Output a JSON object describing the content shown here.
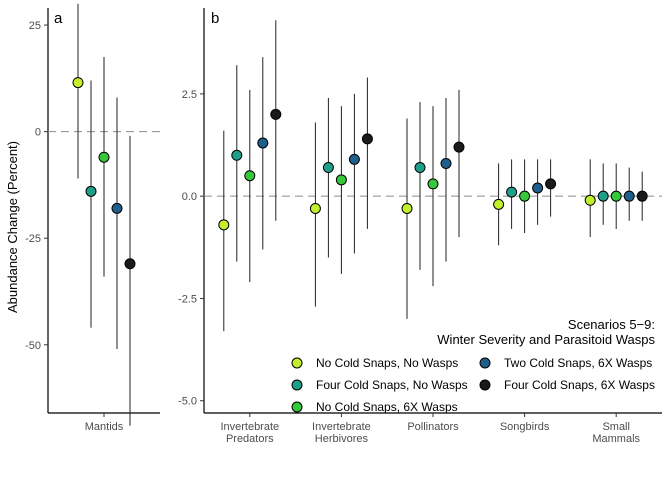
{
  "colors": {
    "No Cold Snaps, No Wasps": "#c3f02a",
    "Four Cold Snaps, No Wasps": "#1f9e89",
    "No Cold Snaps, 6X Wasps": "#35c83a",
    "Two Cold Snaps, 6X Wasps": "#1f5f8c",
    "Four Cold Snaps, 6X Wasps": "#1a1a1a"
  },
  "ylabel": "Abundance Change (Percent)",
  "chart_data": [
    {
      "type": "scatter",
      "panel": "a",
      "categories": [
        "Mantids"
      ],
      "ylim": [
        -66,
        29
      ],
      "yticks": [
        "25",
        "0",
        "-25",
        "-50"
      ],
      "ytick_values": [
        25,
        0,
        -25,
        -50
      ],
      "grid": false,
      "reference_line": 0,
      "series": [
        {
          "name": "No Cold Snaps, No Wasps",
          "values": [
            11.5
          ],
          "lower": [
            -11
          ],
          "upper": [
            30
          ]
        },
        {
          "name": "Four Cold Snaps, No Wasps",
          "values": [
            -14
          ],
          "lower": [
            -46
          ],
          "upper": [
            12
          ]
        },
        {
          "name": "No Cold Snaps, 6X Wasps",
          "values": [
            -6
          ],
          "lower": [
            -34
          ],
          "upper": [
            17.5
          ]
        },
        {
          "name": "Two Cold Snaps, 6X Wasps",
          "values": [
            -18
          ],
          "lower": [
            -51
          ],
          "upper": [
            8
          ]
        },
        {
          "name": "Four Cold Snaps, 6X Wasps",
          "values": [
            -31
          ],
          "lower": [
            -69
          ],
          "upper": [
            -1
          ]
        }
      ]
    },
    {
      "type": "scatter",
      "panel": "b",
      "categories": [
        "Invertebrate\nPredators",
        "Invertebrate\nHerbivores",
        "Pollinators",
        "Songbirds",
        "Small\nMammals"
      ],
      "ylim": [
        -5.3,
        4.6
      ],
      "yticks": [
        "2.5",
        "0.0",
        "-2.5",
        "-5.0"
      ],
      "ytick_values": [
        2.5,
        0,
        -2.5,
        -5
      ],
      "grid": false,
      "reference_line": 0,
      "legend_position": "bottom-right",
      "legend_title": "Scenarios 5−9:\nWinter Severity and Parasitoid Wasps",
      "series": [
        {
          "name": "No Cold Snaps, No Wasps",
          "values": [
            -0.7,
            -0.3,
            -0.3,
            -0.2,
            -0.1
          ],
          "lower": [
            -3.3,
            -2.7,
            -3.0,
            -1.2,
            -1.0
          ],
          "upper": [
            1.6,
            1.8,
            1.9,
            0.8,
            0.9
          ]
        },
        {
          "name": "Four Cold Snaps, No Wasps",
          "values": [
            1.0,
            0.7,
            0.7,
            0.1,
            0.0
          ],
          "lower": [
            -1.6,
            -1.5,
            -1.8,
            -0.8,
            -0.7
          ],
          "upper": [
            3.2,
            2.4,
            2.3,
            0.9,
            0.8
          ]
        },
        {
          "name": "No Cold Snaps, 6X Wasps",
          "values": [
            0.5,
            0.4,
            0.3,
            0.0,
            0.0
          ],
          "lower": [
            -2.1,
            -1.9,
            -2.2,
            -0.9,
            -0.8
          ],
          "upper": [
            2.6,
            2.2,
            2.2,
            0.9,
            0.8
          ]
        },
        {
          "name": "Two Cold Snaps, 6X Wasps",
          "values": [
            1.3,
            0.9,
            0.8,
            0.2,
            0.0
          ],
          "lower": [
            -1.3,
            -1.4,
            -1.6,
            -0.7,
            -0.6
          ],
          "upper": [
            3.4,
            2.5,
            2.4,
            0.9,
            0.7
          ]
        },
        {
          "name": "Four Cold Snaps, 6X Wasps",
          "values": [
            2.0,
            1.4,
            1.2,
            0.3,
            0.0
          ],
          "lower": [
            -0.6,
            -0.8,
            -1.0,
            -0.5,
            -0.6
          ],
          "upper": [
            4.3,
            2.9,
            2.6,
            0.9,
            0.6
          ]
        }
      ]
    }
  ],
  "legend": {
    "title": "Scenarios 5−9:\nWinter Severity and Parasitoid Wasps",
    "items": [
      "No Cold Snaps, No Wasps",
      "Four Cold Snaps, No Wasps",
      "No Cold Snaps, 6X Wasps",
      "Two Cold Snaps, 6X Wasps",
      "Four Cold Snaps, 6X Wasps"
    ]
  }
}
